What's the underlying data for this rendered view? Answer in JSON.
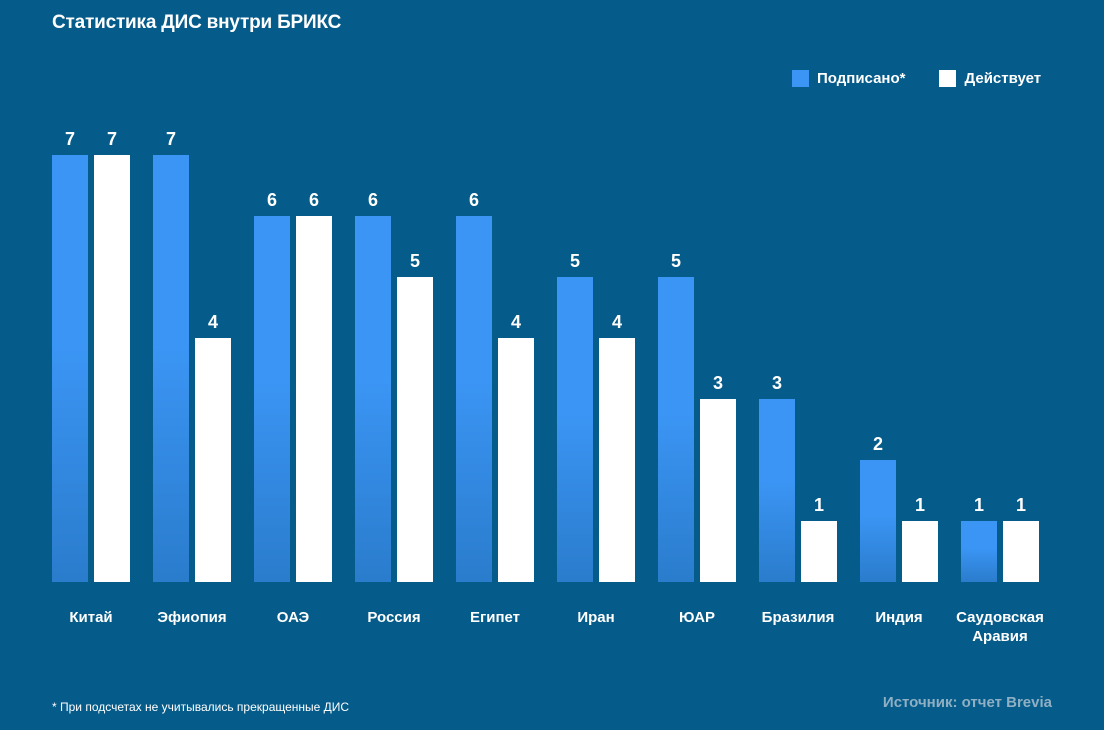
{
  "title": "Статистика ДИС внутри БРИКС",
  "legend": [
    {
      "label": "Подписано*",
      "color": "#3b95f4"
    },
    {
      "label": "Действует",
      "color": "#ffffff"
    }
  ],
  "footnote": "* При подсчетах не учитывались прекращенные ДИС",
  "source": "Источник: отчет Brevia",
  "colors": {
    "background": "#055b89",
    "signed": "#3b95f4",
    "active": "#ffffff",
    "signed_dark": "#2e7fd6"
  },
  "chart_data": {
    "type": "bar",
    "title": "Статистика ДИС внутри БРИКС",
    "xlabel": "",
    "ylabel": "",
    "ylim": [
      0,
      7
    ],
    "grid": false,
    "legend_position": "top-right",
    "categories": [
      "Китай",
      "Эфиопия",
      "ОАЭ",
      "Россия",
      "Египет",
      "Иран",
      "ЮАР",
      "Бразилия",
      "Индия",
      "Саудовская Аравия"
    ],
    "series": [
      {
        "name": "Подписано*",
        "values": [
          7,
          7,
          6,
          6,
          6,
          5,
          5,
          3,
          2,
          1
        ]
      },
      {
        "name": "Действует",
        "values": [
          7,
          4,
          6,
          5,
          4,
          4,
          3,
          1,
          1,
          1
        ]
      }
    ]
  }
}
